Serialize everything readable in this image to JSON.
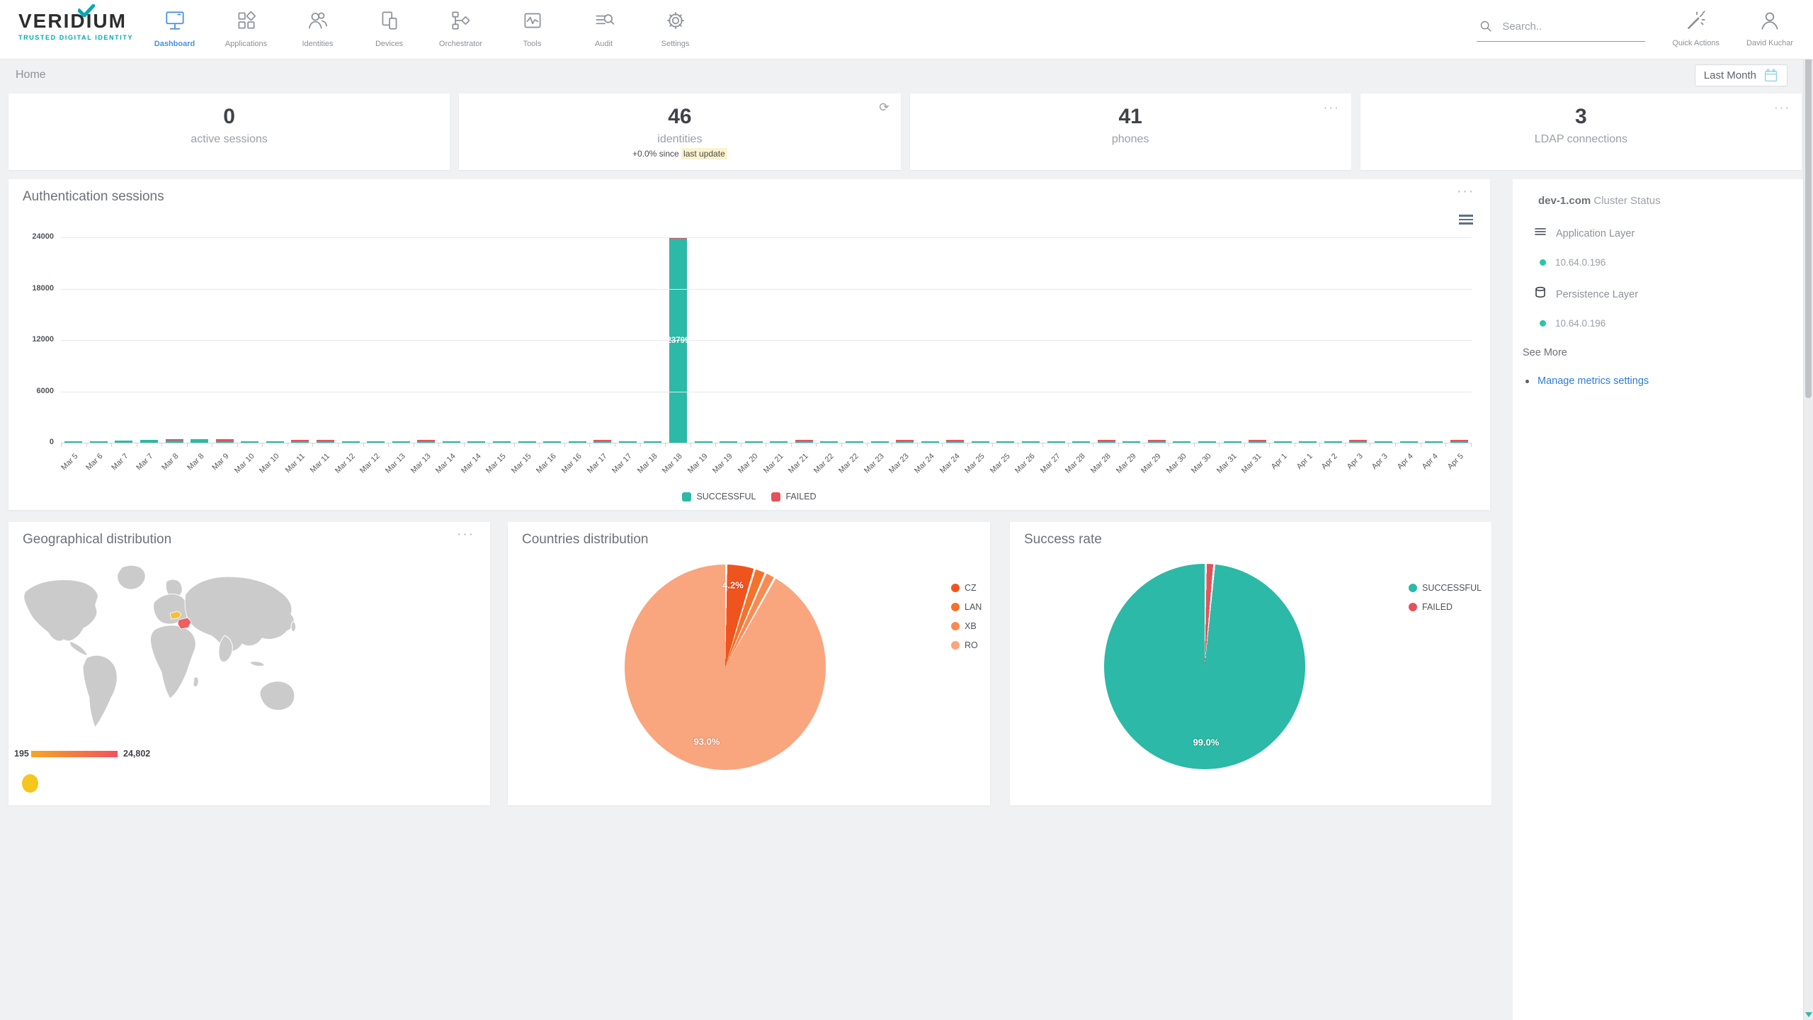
{
  "brand": {
    "name": "VERIDIUM",
    "tagline": "TRUSTED DIGITAL IDENTITY",
    "accent_color": "#00a9b5"
  },
  "topbar": {
    "nav_items": [
      {
        "label": "Dashboard",
        "icon": "dashboard-icon",
        "active": true
      },
      {
        "label": "Applications",
        "icon": "applications-icon",
        "active": false
      },
      {
        "label": "Identities",
        "icon": "identities-icon",
        "active": false
      },
      {
        "label": "Devices",
        "icon": "devices-icon",
        "active": false
      },
      {
        "label": "Orchestrator",
        "icon": "orchestrator-icon",
        "active": false
      },
      {
        "label": "Tools",
        "icon": "tools-icon",
        "active": false
      },
      {
        "label": "Audit",
        "icon": "audit-icon",
        "active": false
      },
      {
        "label": "Settings",
        "icon": "settings-icon",
        "active": false
      }
    ],
    "active_color": "#4a90e2",
    "search_placeholder": "Search..",
    "quick_actions_label": "Quick Actions",
    "user_name": "David Kuchar"
  },
  "breadcrumb": "Home",
  "date_filter_label": "Last Month",
  "stat_cards": [
    {
      "value": "0",
      "label": "active sessions",
      "action_icon": ""
    },
    {
      "value": "46",
      "label": "identities",
      "delta_text": "+0.0% since",
      "delta_highlight": "last update",
      "action_icon": "refresh-icon"
    },
    {
      "value": "41",
      "label": "phones",
      "action_icon": "more-options-icon"
    },
    {
      "value": "3",
      "label": "LDAP connections",
      "action_icon": "more-options-icon"
    }
  ],
  "auth_sessions": {
    "title": "Authentication sessions",
    "y_ticks": [
      "24000",
      "18000",
      "12000",
      "6000",
      "0"
    ],
    "big_bar_label": "23799"
  },
  "cluster_panel": {
    "host": "dev-1.com",
    "title": "Cluster Status",
    "sections": [
      {
        "icon": "layers-icon",
        "label": "Application Layer",
        "nodes": [
          {
            "status_color": "#26c6a8",
            "address": "10.64.0.196"
          }
        ]
      },
      {
        "icon": "database-icon",
        "label": "Persistence Layer",
        "nodes": [
          {
            "status_color": "#26c6a8",
            "address": "10.64.0.196"
          }
        ]
      }
    ],
    "see_more_label": "See More",
    "manage_link": "Manage metrics settings",
    "link_color": "#2d7dd2"
  },
  "geo_card": {
    "title": "Geographical distribution",
    "scale_min": "195",
    "scale_max": "24,802",
    "gradient_start": "#f5a623",
    "gradient_end": "#f4515c",
    "highlight_cz_color": "#f0c23c",
    "highlight_ro_color": "#ee5f5f",
    "land_color": "#cbcbcb",
    "bubble_color": "#f5c61b"
  },
  "countries_card": {
    "title": "Countries distribution"
  },
  "success_card": {
    "title": "Success rate"
  },
  "chart_data": [
    {
      "type": "bar",
      "title": "Authentication sessions",
      "xlabel": "",
      "ylabel": "",
      "ylim": [
        0,
        24000
      ],
      "grid": true,
      "legend_position": "bottom",
      "categories": [
        "Mar 5",
        "Mar 6",
        "Mar 7",
        "Mar 7",
        "Mar 8",
        "Mar 8",
        "Mar 9",
        "Mar 10",
        "Mar 10",
        "Mar 11",
        "Mar 11",
        "Mar 12",
        "Mar 12",
        "Mar 13",
        "Mar 13",
        "Mar 14",
        "Mar 14",
        "Mar 15",
        "Mar 15",
        "Mar 16",
        "Mar 16",
        "Mar 17",
        "Mar 17",
        "Mar 18",
        "Mar 18",
        "Mar 19",
        "Mar 19",
        "Mar 20",
        "Mar 21",
        "Mar 21",
        "Mar 22",
        "Mar 22",
        "Mar 23",
        "Mar 23",
        "Mar 24",
        "Mar 24",
        "Mar 25",
        "Mar 25",
        "Mar 26",
        "Mar 27",
        "Mar 28",
        "Mar 28",
        "Mar 29",
        "Mar 29",
        "Mar 30",
        "Mar 30",
        "Mar 31",
        "Mar 31",
        "Apr 1",
        "Apr 1",
        "Apr 2",
        "Apr 3",
        "Apr 3",
        "Apr 4",
        "Apr 4",
        "Apr 5"
      ],
      "series": [
        {
          "name": "SUCCESSFUL",
          "color": "#2cb9a7",
          "values": [
            40,
            50,
            290,
            310,
            240,
            430,
            30,
            80,
            100,
            90,
            170,
            110,
            70,
            150,
            90,
            70,
            90,
            130,
            110,
            150,
            160,
            100,
            120,
            190,
            23799,
            80,
            100,
            70,
            140,
            120,
            90,
            70,
            150,
            100,
            110,
            90,
            130,
            110,
            100,
            70,
            120,
            140,
            90,
            110,
            130,
            100,
            150,
            120,
            80,
            100,
            70,
            90,
            80,
            100,
            170,
            60
          ]
        },
        {
          "name": "FAILED",
          "color": "#e4515c",
          "values": [
            0,
            0,
            0,
            0,
            60,
            0,
            250,
            0,
            0,
            130,
            60,
            0,
            0,
            0,
            80,
            0,
            0,
            0,
            0,
            0,
            0,
            40,
            0,
            0,
            60,
            0,
            0,
            0,
            0,
            40,
            0,
            0,
            0,
            50,
            0,
            60,
            0,
            0,
            0,
            0,
            0,
            70,
            0,
            50,
            0,
            0,
            0,
            60,
            0,
            0,
            0,
            80,
            0,
            0,
            0,
            90
          ]
        }
      ]
    },
    {
      "type": "pie",
      "title": "Countries distribution",
      "legend_position": "right",
      "slices": [
        {
          "label": "CZ",
          "value": 4.2,
          "color": "#f0541e",
          "display": "4.2%"
        },
        {
          "label": "LAN",
          "value": 1.5,
          "color": "#f4722b",
          "display": ""
        },
        {
          "label": "XB",
          "value": 1.3,
          "color": "#f78b54",
          "display": ""
        },
        {
          "label": "RO",
          "value": 93.0,
          "color": "#f9a57e",
          "display": "93.0%"
        }
      ]
    },
    {
      "type": "pie",
      "title": "Success rate",
      "legend_position": "right",
      "slices": [
        {
          "label": "FAILED",
          "value": 1.0,
          "color": "#e4515c",
          "display": ""
        },
        {
          "label": "SUCCESSFUL",
          "value": 99.0,
          "color": "#2cb9a7",
          "display": "99.0%"
        }
      ],
      "legend_order": [
        "SUCCESSFUL",
        "FAILED"
      ]
    }
  ]
}
